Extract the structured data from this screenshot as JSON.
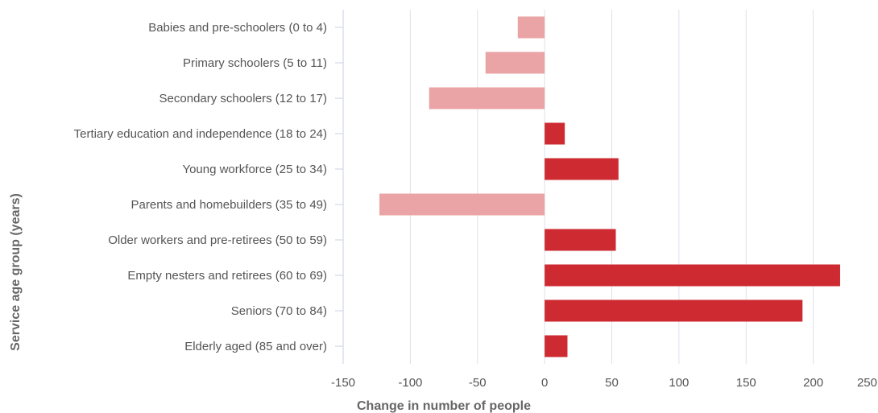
{
  "chart_data": {
    "type": "bar",
    "orientation": "horizontal",
    "xlabel": "Change in number of people",
    "ylabel": "Service age group (years)",
    "xlim": [
      -150,
      250
    ],
    "xticks": [
      -150,
      -100,
      -50,
      0,
      50,
      100,
      150,
      200,
      250
    ],
    "grid": true,
    "categories": [
      "Babies and pre-schoolers (0 to 4)",
      "Primary schoolers (5 to 11)",
      "Secondary schoolers (12 to 17)",
      "Tertiary education and independence (18 to 24)",
      "Young workforce (25 to 34)",
      "Parents and homebuilders (35 to 49)",
      "Older workers and pre-retirees (50 to 59)",
      "Empty nesters and retirees (60 to 69)",
      "Seniors (70 to 84)",
      "Elderly aged (85 and over)"
    ],
    "values": [
      -20,
      -44,
      -86,
      15,
      55,
      -123,
      53,
      220,
      192,
      17
    ],
    "colors": {
      "positive": "#cd2b31",
      "negative": "#eba4a6",
      "grid": "#dde1ea",
      "axis": "#c8d0e0"
    }
  }
}
